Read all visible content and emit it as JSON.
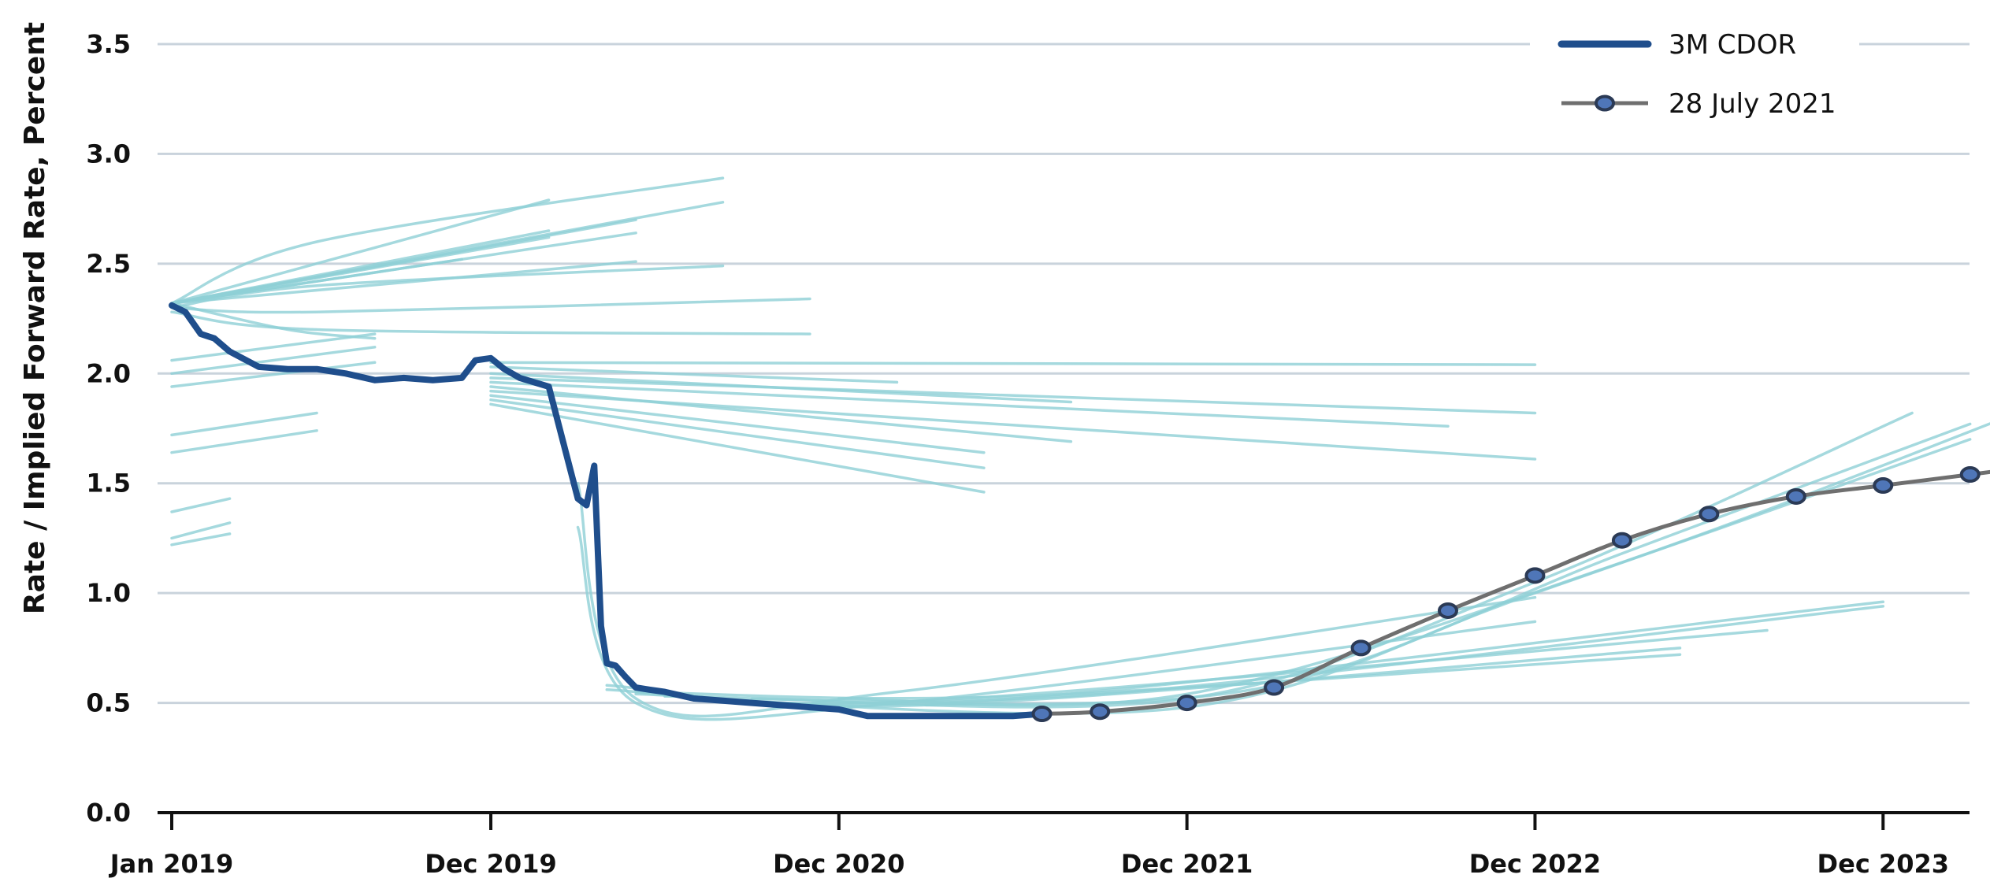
{
  "chart_data": {
    "type": "line",
    "title": "",
    "xlabel": "",
    "ylabel": "Rate / Implied Forward Rate, Percent",
    "ylim": [
      0,
      3.5
    ],
    "xlim": [
      "2019-01",
      "2024-08"
    ],
    "grid": "horizontal",
    "legend_position": "top-right",
    "y_ticks": [
      {
        "value": 0.0,
        "label": "0.0"
      },
      {
        "value": 0.5,
        "label": "0.5"
      },
      {
        "value": 1.0,
        "label": "1.0"
      },
      {
        "value": 1.5,
        "label": "1.5"
      },
      {
        "value": 2.0,
        "label": "2.0"
      },
      {
        "value": 2.5,
        "label": "2.5"
      },
      {
        "value": 3.0,
        "label": "3.0"
      },
      {
        "value": 3.5,
        "label": "3.5"
      }
    ],
    "x_ticks": [
      {
        "value": "2019-01",
        "label": "Jan 2019"
      },
      {
        "value": "2019-12",
        "label": "Dec 2019"
      },
      {
        "value": "2020-12",
        "label": "Dec 2020"
      },
      {
        "value": "2021-12",
        "label": "Dec 2021"
      },
      {
        "value": "2022-12",
        "label": "Dec 2022"
      },
      {
        "value": "2023-12",
        "label": "Dec 2023"
      }
    ],
    "colors": {
      "cdor": "#1f4e8c",
      "curve_2021": "#6f6f6f",
      "marker_fill": "#4f76b8",
      "marker_stroke": "#2b3a55",
      "forward_curves": "#8fd0d6",
      "grid": "#c9d3dc",
      "axis": "#111111"
    },
    "series": [
      {
        "name": "3M CDOR",
        "x": [
          "2019-01",
          "2019-01-15",
          "2019-02",
          "2019-02-15",
          "2019-03",
          "2019-04",
          "2019-05",
          "2019-06",
          "2019-07",
          "2019-08",
          "2019-09",
          "2019-10",
          "2019-11",
          "2019-11-15",
          "2019-12",
          "2019-12-15",
          "2020-01",
          "2020-02",
          "2020-03",
          "2020-03-10",
          "2020-03-18",
          "2020-03-25",
          "2020-04",
          "2020-04-10",
          "2020-04-20",
          "2020-05",
          "2020-05-15",
          "2020-06",
          "2020-07",
          "2020-08",
          "2020-09",
          "2020-10",
          "2020-11",
          "2020-12",
          "2021-01",
          "2021-02",
          "2021-03",
          "2021-04",
          "2021-05",
          "2021-06",
          "2021-07"
        ],
        "values": [
          2.31,
          2.28,
          2.18,
          2.16,
          2.1,
          2.03,
          2.02,
          2.02,
          2.0,
          1.97,
          1.98,
          1.97,
          1.98,
          2.06,
          2.07,
          2.02,
          1.98,
          1.94,
          1.43,
          1.4,
          1.58,
          0.85,
          0.68,
          0.67,
          0.62,
          0.57,
          0.56,
          0.55,
          0.52,
          0.51,
          0.5,
          0.49,
          0.48,
          0.47,
          0.44,
          0.44,
          0.44,
          0.44,
          0.44,
          0.44,
          0.45
        ]
      },
      {
        "name": "28 July 2021",
        "x": [
          "2021-07",
          "2021-09",
          "2021-12",
          "2022-03",
          "2022-06",
          "2022-09",
          "2022-12",
          "2023-03",
          "2023-06",
          "2023-09",
          "2023-12",
          "2024-03",
          "2024-06"
        ],
        "values": [
          0.45,
          0.46,
          0.5,
          0.57,
          0.75,
          0.92,
          1.08,
          1.24,
          1.36,
          1.44,
          1.49,
          1.54,
          1.59
        ]
      }
    ],
    "forward_curves": [
      {
        "x": [
          "2019-01",
          "2019-03"
        ],
        "values": [
          1.22,
          1.27
        ]
      },
      {
        "x": [
          "2019-01",
          "2019-03"
        ],
        "values": [
          1.25,
          1.32
        ]
      },
      {
        "x": [
          "2019-01",
          "2019-03"
        ],
        "values": [
          1.37,
          1.43
        ]
      },
      {
        "x": [
          "2019-01",
          "2019-06"
        ],
        "values": [
          1.64,
          1.74
        ]
      },
      {
        "x": [
          "2019-01",
          "2019-06"
        ],
        "values": [
          1.72,
          1.82
        ]
      },
      {
        "x": [
          "2019-01",
          "2019-08"
        ],
        "values": [
          1.94,
          2.05
        ]
      },
      {
        "x": [
          "2019-01",
          "2019-08"
        ],
        "values": [
          2.0,
          2.12
        ]
      },
      {
        "x": [
          "2019-01",
          "2019-08"
        ],
        "values": [
          2.06,
          2.18
        ]
      },
      {
        "x": [
          "2019-01",
          "2019-05",
          "2019-08"
        ],
        "values": [
          2.32,
          2.2,
          2.16
        ]
      },
      {
        "x": [
          "2019-01",
          "2019-11"
        ],
        "values": [
          2.32,
          2.52
        ]
      },
      {
        "x": [
          "2019-01",
          "2020-02"
        ],
        "values": [
          2.32,
          2.62
        ]
      },
      {
        "x": [
          "2019-01",
          "2020-02"
        ],
        "values": [
          2.32,
          2.65
        ]
      },
      {
        "x": [
          "2019-01",
          "2020-05"
        ],
        "values": [
          2.32,
          2.64
        ]
      },
      {
        "x": [
          "2019-01",
          "2020-05"
        ],
        "values": [
          2.32,
          2.7
        ]
      },
      {
        "x": [
          "2019-01",
          "2020-02"
        ],
        "values": [
          2.32,
          2.79
        ]
      },
      {
        "x": [
          "2019-01",
          "2020-05"
        ],
        "values": [
          2.32,
          2.51
        ]
      },
      {
        "x": [
          "2019-01",
          "2020-08"
        ],
        "values": [
          2.32,
          2.78
        ]
      },
      {
        "x": [
          "2019-01",
          "2019-06",
          "2020-08"
        ],
        "values": [
          2.32,
          2.6,
          2.89
        ]
      },
      {
        "x": [
          "2019-01",
          "2019-06",
          "2020-08"
        ],
        "values": [
          2.3,
          2.4,
          2.49
        ]
      },
      {
        "x": [
          "2019-01",
          "2019-06",
          "2020-11"
        ],
        "values": [
          2.3,
          2.28,
          2.34
        ]
      },
      {
        "x": [
          "2019-01",
          "2019-06",
          "2020-11"
        ],
        "values": [
          2.28,
          2.2,
          2.18
        ]
      },
      {
        "x": [
          "2019-12",
          "2021-02"
        ],
        "values": [
          2.03,
          1.96
        ]
      },
      {
        "x": [
          "2019-12",
          "2022-12"
        ],
        "values": [
          2.05,
          2.04
        ]
      },
      {
        "x": [
          "2019-12",
          "2021-08"
        ],
        "values": [
          2.0,
          1.87
        ]
      },
      {
        "x": [
          "2019-12",
          "2022-12"
        ],
        "values": [
          1.98,
          1.82
        ]
      },
      {
        "x": [
          "2019-12",
          "2022-09"
        ],
        "values": [
          1.96,
          1.76
        ]
      },
      {
        "x": [
          "2019-12",
          "2021-08"
        ],
        "values": [
          1.94,
          1.69
        ]
      },
      {
        "x": [
          "2019-12",
          "2022-12"
        ],
        "values": [
          1.92,
          1.61
        ]
      },
      {
        "x": [
          "2019-12",
          "2021-05"
        ],
        "values": [
          1.9,
          1.64
        ]
      },
      {
        "x": [
          "2019-12",
          "2021-05"
        ],
        "values": [
          1.88,
          1.57
        ]
      },
      {
        "x": [
          "2019-12",
          "2021-05"
        ],
        "values": [
          1.86,
          1.46
        ]
      },
      {
        "x": [
          "2020-03",
          "2020-05",
          "2021-02",
          "2022-12"
        ],
        "values": [
          1.5,
          0.52,
          0.55,
          0.98
        ]
      },
      {
        "x": [
          "2020-03",
          "2020-05",
          "2021-02",
          "2022-12"
        ],
        "values": [
          1.3,
          0.5,
          0.5,
          0.87
        ]
      },
      {
        "x": [
          "2020-04",
          "2021-03",
          "2023-05"
        ],
        "values": [
          0.58,
          0.49,
          0.75
        ]
      },
      {
        "x": [
          "2020-04",
          "2021-03",
          "2023-08"
        ],
        "values": [
          0.56,
          0.51,
          0.83
        ]
      },
      {
        "x": [
          "2020-05",
          "2021-06",
          "2023-05"
        ],
        "values": [
          0.55,
          0.53,
          0.72
        ]
      },
      {
        "x": [
          "2020-05",
          "2021-06",
          "2023-12"
        ],
        "values": [
          0.54,
          0.52,
          0.96
        ]
      },
      {
        "x": [
          "2020-06",
          "2021-09",
          "2023-12"
        ],
        "values": [
          0.53,
          0.54,
          0.94
        ]
      },
      {
        "x": [
          "2020-07",
          "2021-12",
          "2022-12",
          "2024-03"
        ],
        "values": [
          0.52,
          0.48,
          1.0,
          1.7
        ]
      },
      {
        "x": [
          "2020-09",
          "2021-12",
          "2022-12",
          "2024-01"
        ],
        "values": [
          0.52,
          0.52,
          1.05,
          1.82
        ]
      },
      {
        "x": [
          "2020-12",
          "2021-12",
          "2023-03",
          "2024-06"
        ],
        "values": [
          0.52,
          0.54,
          1.14,
          1.89
        ]
      },
      {
        "x": [
          "2021-03",
          "2022-03",
          "2023-03",
          "2024-03"
        ],
        "values": [
          0.49,
          0.58,
          1.18,
          1.77
        ]
      }
    ],
    "legend": [
      {
        "label": "3M CDOR",
        "style": "line"
      },
      {
        "label": "28 July 2021",
        "style": "line-marker"
      }
    ]
  }
}
